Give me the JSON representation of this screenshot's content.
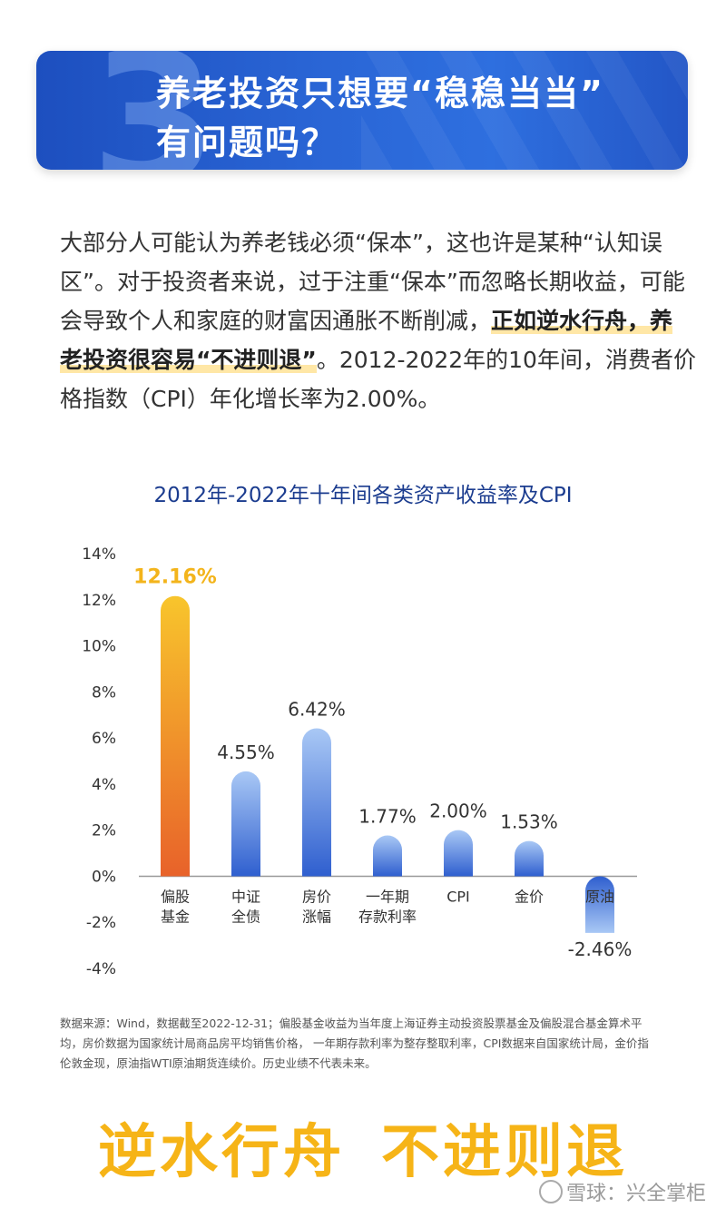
{
  "banner": {
    "number": "3",
    "title_line1": "养老投资只想要“稳稳当当”",
    "title_line2": "有问题吗？"
  },
  "paragraph": {
    "line1": "大部分人可能认为养老钱必须“保本”，这也许是某种“认知误",
    "line2": "区”。对于投资者来说，过于注重“保本”而忽略长期收益，可能",
    "line3_pre": "会导致个人和家庭的财富因通胀不断削减，",
    "line3_hl": "正如逆水行舟，养",
    "line4_hl": "老投资很容易“不进则退”",
    "line4_post": "。2012-2022年的10年间，消费者价",
    "line5": "格指数（CPI）年化增长率为2.00%。"
  },
  "chart_data": {
    "type": "bar",
    "title": "2012年-2022年十年间各类资产收益率及CPI",
    "categories": [
      [
        "偏股",
        "基金"
      ],
      [
        "中证",
        "全债"
      ],
      [
        "房价",
        "涨幅"
      ],
      [
        "一年期",
        "存款利率"
      ],
      [
        "CPI"
      ],
      [
        "金价"
      ],
      [
        "原油"
      ]
    ],
    "values": [
      12.16,
      4.55,
      6.42,
      1.77,
      2.0,
      1.53,
      -2.46
    ],
    "labels": [
      "12.16%",
      "4.55%",
      "6.42%",
      "1.77%",
      "2.00%",
      "1.53%",
      "-2.46%"
    ],
    "yticks": [
      14,
      12,
      10,
      8,
      6,
      4,
      2,
      0,
      -2,
      -4
    ],
    "ytick_labels": [
      "14%",
      "12%",
      "10%",
      "8%",
      "6%",
      "4%",
      "2%",
      "0%",
      "-2%",
      "-4%"
    ],
    "ylim": [
      -4,
      14
    ],
    "grid": false,
    "colors": {
      "highlight_top": "#f8c52c",
      "highlight_bottom": "#e8622a",
      "bar_top": "#a9c8f5",
      "bar_bottom": "#2f5fcf",
      "highlight_label": "#f3b41b"
    }
  },
  "source": {
    "line1": "数据来源：Wind，数据截至2022-12-31；偏股基金收益为当年度上海证券主动投资股票基金及偏股混合基金算术平",
    "line2": "均，房价数据为国家统计局商品房平均销售价格， 一年期存款利率为整存整取利率，CPI数据来自国家统计局，金价指",
    "line3": "伦敦金现，原油指WTI原油期货连续价。历史业绩不代表未来。"
  },
  "slogan": {
    "part1": "逆水行舟",
    "part2": "不进则退"
  },
  "watermark": "雪球：兴全掌柜"
}
